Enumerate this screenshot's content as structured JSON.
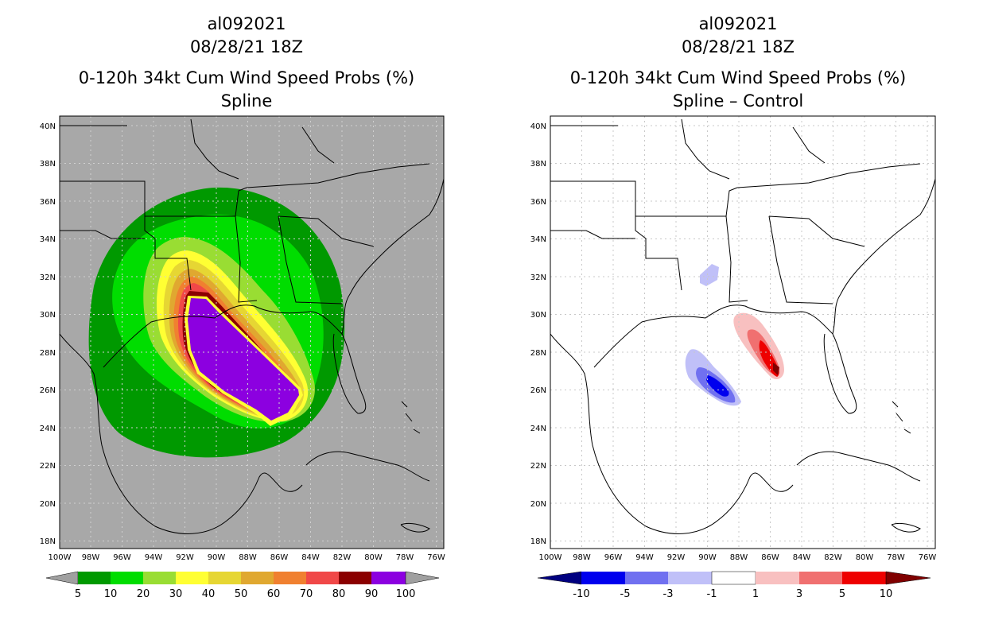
{
  "left_panel": {
    "storm_id": "al092021",
    "datetime": "08/28/21 18Z",
    "product": "0-120h 34kt Cum Wind Speed Probs (%)",
    "method": "Spline",
    "colorbar": {
      "labels": [
        "5",
        "10",
        "20",
        "30",
        "40",
        "50",
        "60",
        "70",
        "80",
        "90",
        "100"
      ],
      "colors": [
        "#a0a0a0",
        "#009900",
        "#00dd00",
        "#99dd33",
        "#ffff33",
        "#e6d633",
        "#e0a830",
        "#f08030",
        "#f04848",
        "#8b0000",
        "#8c00e0",
        "#a0a0a0"
      ]
    }
  },
  "right_panel": {
    "storm_id": "al092021",
    "datetime": "08/28/21 18Z",
    "product": "0-120h 34kt Cum Wind Speed Probs (%)",
    "method": "Spline – Control",
    "colorbar": {
      "labels": [
        "-10",
        "-5",
        "-3",
        "-1",
        "1",
        "3",
        "5",
        "10"
      ],
      "colors": [
        "#000080",
        "#0000ee",
        "#7070f0",
        "#c0c0f8",
        "#ffffff",
        "#f8c0c0",
        "#f07070",
        "#ee0000",
        "#800000"
      ]
    }
  },
  "axes": {
    "lat_labels": [
      "40N",
      "38N",
      "36N",
      "34N",
      "32N",
      "30N",
      "28N",
      "26N",
      "24N",
      "22N",
      "20N",
      "18N"
    ],
    "lon_labels": [
      "100W",
      "98W",
      "96W",
      "94W",
      "92W",
      "90W",
      "88W",
      "86W",
      "84W",
      "82W",
      "80W",
      "78W",
      "76W"
    ],
    "lat_range": [
      17.5,
      40.5
    ],
    "lon_range": [
      -100,
      -75.5
    ]
  }
}
